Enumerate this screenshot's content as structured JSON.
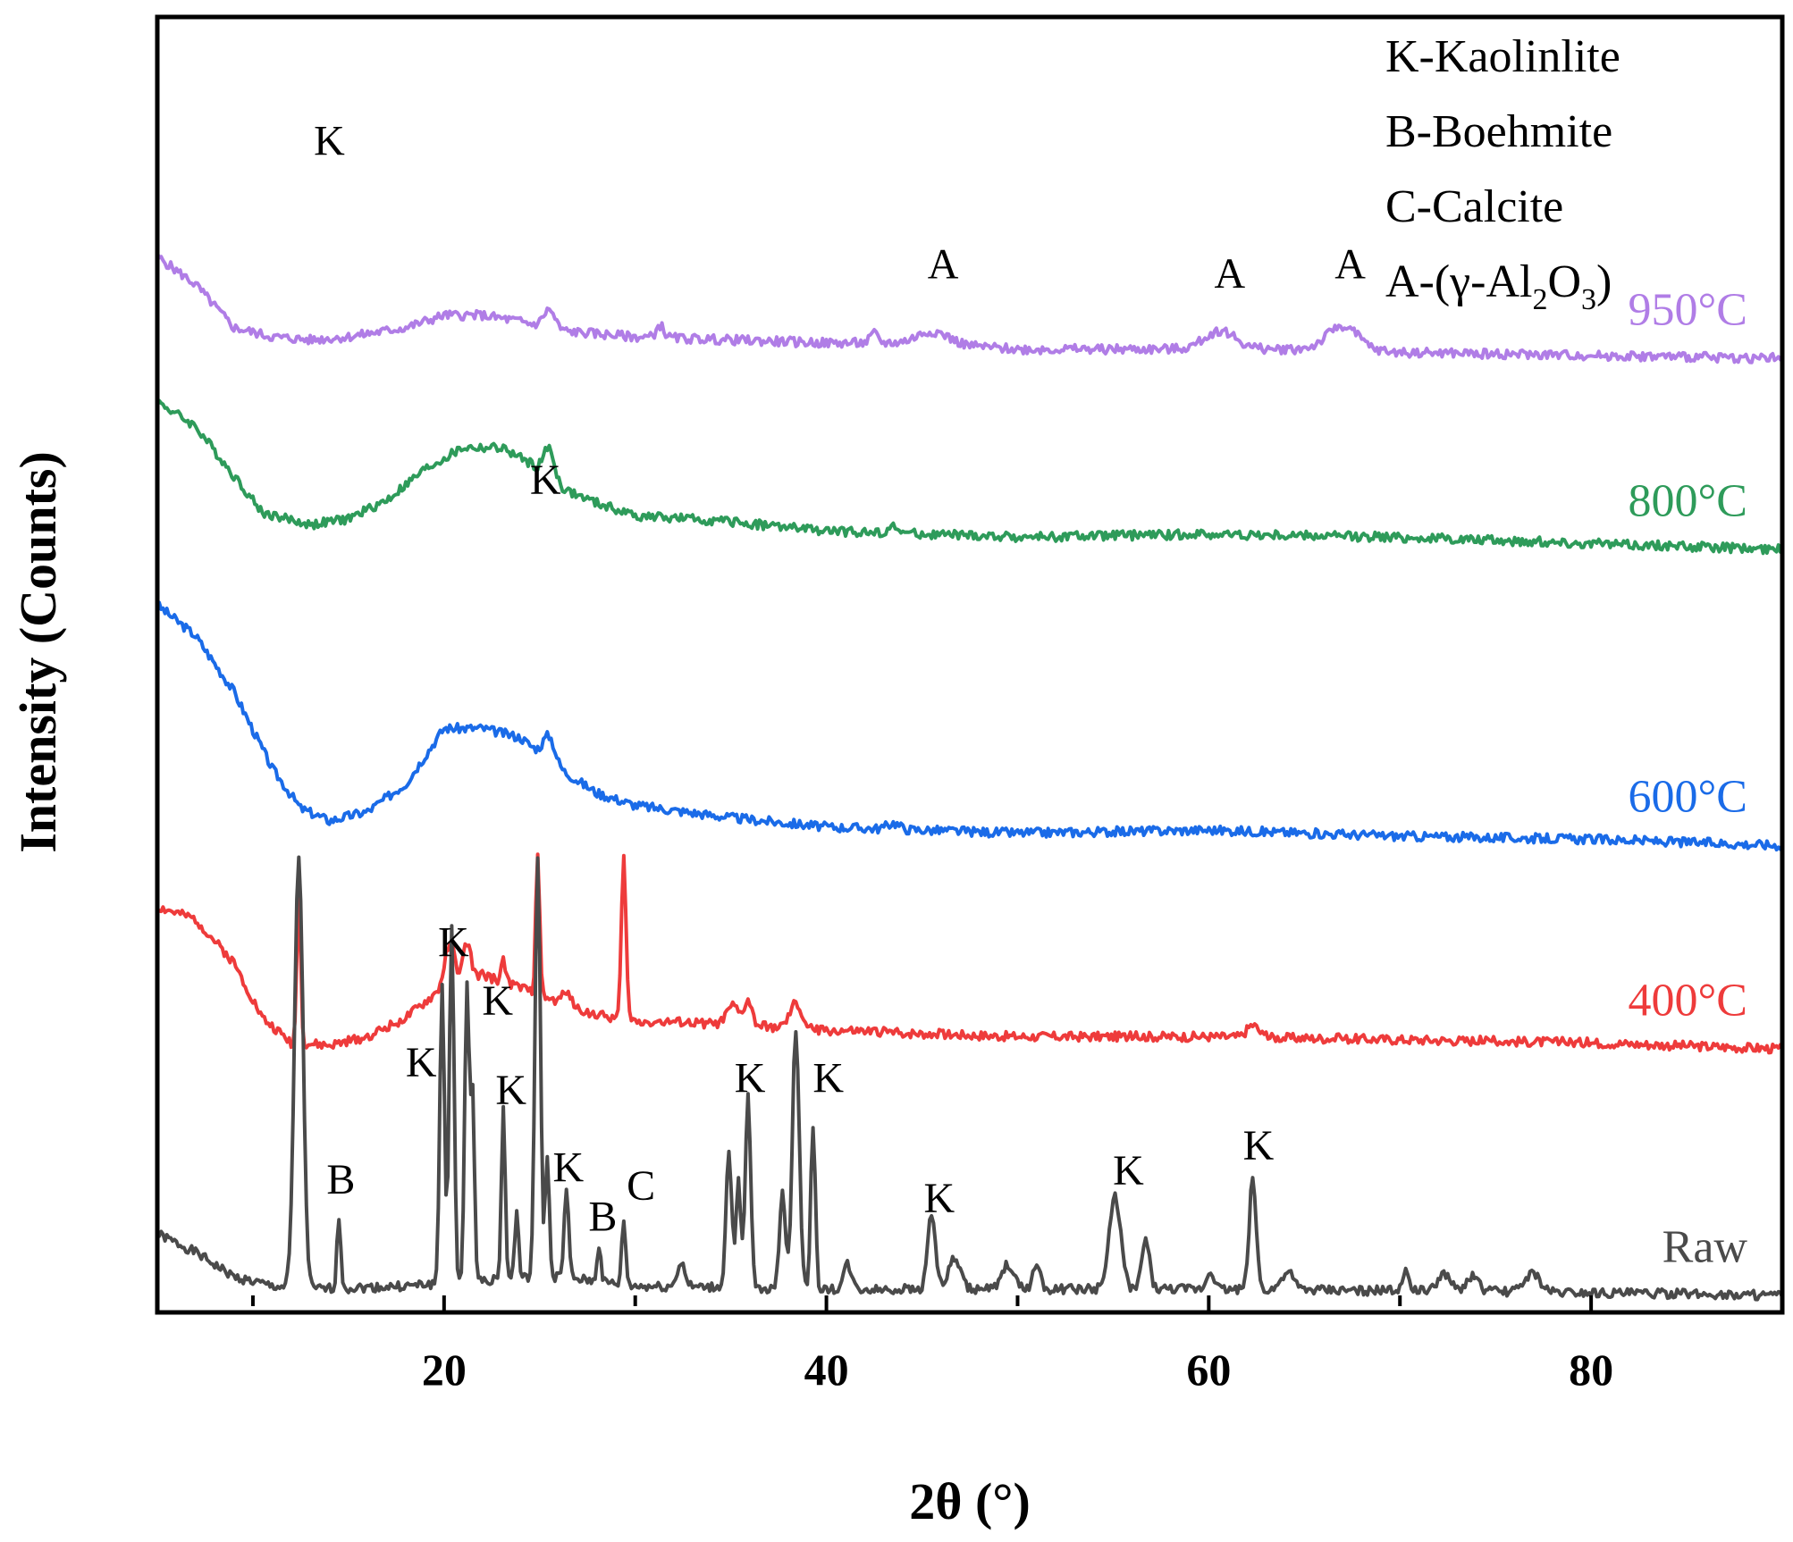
{
  "chart_data": {
    "type": "line",
    "title": "",
    "xlabel": "2θ (°)",
    "ylabel": "Intensity (Counts)",
    "xlim": [
      5,
      90
    ],
    "xticks": [
      20,
      40,
      60,
      80
    ],
    "yticks_shown": false,
    "legend_position": "top-right",
    "legend": [
      {
        "text": "K-Kaolinlite"
      },
      {
        "text": "B-Boehmite"
      },
      {
        "text": "C-Calcite"
      },
      {
        "prefix": "A-(γ-Al",
        "sub1": "2",
        "mid": "O",
        "sub2": "3",
        "suffix": ")"
      }
    ],
    "series": [
      {
        "name": "Raw",
        "label": "Raw",
        "color": "#4a4a4a",
        "offset": 0,
        "baseline": [
          [
            5,
            20
          ],
          [
            7,
            14
          ],
          [
            9,
            6
          ],
          [
            11,
            3
          ],
          [
            13,
            2
          ],
          [
            18,
            3
          ],
          [
            22,
            5
          ],
          [
            26,
            6
          ],
          [
            30,
            3
          ],
          [
            40,
            2
          ],
          [
            50,
            2
          ],
          [
            60,
            2
          ],
          [
            70,
            1.5
          ],
          [
            80,
            1
          ],
          [
            90,
            0
          ]
        ],
        "peaks": [
          [
            12.4,
            140,
            0.22
          ],
          [
            14.5,
            23,
            0.1
          ],
          [
            19.9,
            97,
            0.12
          ],
          [
            20.4,
            116,
            0.12
          ],
          [
            21.2,
            96,
            0.12
          ],
          [
            21.5,
            58,
            0.1
          ],
          [
            23.1,
            55,
            0.1
          ],
          [
            23.8,
            22,
            0.1
          ],
          [
            24.9,
            135,
            0.14
          ],
          [
            25.4,
            40,
            0.1
          ],
          [
            26.4,
            28,
            0.12
          ],
          [
            28.1,
            12,
            0.1
          ],
          [
            29.4,
            21,
            0.1
          ],
          [
            32.4,
            8,
            0.2
          ],
          [
            34.9,
            44,
            0.15
          ],
          [
            35.4,
            34,
            0.12
          ],
          [
            35.9,
            62,
            0.14
          ],
          [
            37.7,
            32,
            0.15
          ],
          [
            38.4,
            84,
            0.18
          ],
          [
            39.3,
            52,
            0.12
          ],
          [
            41.1,
            8,
            0.2
          ],
          [
            45.5,
            25,
            0.2
          ],
          [
            46.7,
            10,
            0.3
          ],
          [
            49.5,
            8,
            0.3
          ],
          [
            51,
            8,
            0.2
          ],
          [
            55.1,
            30,
            0.3
          ],
          [
            56.7,
            16,
            0.2
          ],
          [
            60.1,
            6,
            0.2
          ],
          [
            62.3,
            36,
            0.18
          ],
          [
            64.1,
            6,
            0.3
          ],
          [
            70.3,
            6,
            0.2
          ],
          [
            72.3,
            6,
            0.3
          ],
          [
            73.8,
            5,
            0.3
          ],
          [
            76.9,
            6,
            0.4
          ]
        ]
      },
      {
        "name": "400°C",
        "label": "400°C",
        "color": "#ee3b3b",
        "offset": 80,
        "baseline": [
          [
            5,
            46
          ],
          [
            7,
            42
          ],
          [
            9,
            28
          ],
          [
            10.5,
            10
          ],
          [
            12,
            2
          ],
          [
            14,
            1
          ],
          [
            16,
            4
          ],
          [
            18,
            10
          ],
          [
            20,
            20
          ],
          [
            22,
            24
          ],
          [
            24,
            20
          ],
          [
            26,
            15
          ],
          [
            28,
            11
          ],
          [
            30,
            9
          ],
          [
            35,
            8
          ],
          [
            40,
            6
          ],
          [
            45,
            5
          ],
          [
            50,
            4
          ],
          [
            60,
            4
          ],
          [
            70,
            3
          ],
          [
            80,
            2
          ],
          [
            90,
            0
          ]
        ],
        "peaks": [
          [
            12.4,
            48,
            0.1
          ],
          [
            20.3,
            14,
            0.25
          ],
          [
            21.2,
            12,
            0.2
          ],
          [
            23.1,
            8,
            0.1
          ],
          [
            24.9,
            46,
            0.1
          ],
          [
            26.4,
            5,
            0.2
          ],
          [
            29.4,
            52,
            0.12
          ],
          [
            35.1,
            6,
            0.3
          ],
          [
            35.9,
            8,
            0.2
          ],
          [
            38.4,
            8,
            0.3
          ],
          [
            62.3,
            4,
            0.3
          ]
        ]
      },
      {
        "name": "600°C",
        "label": "600°C",
        "color": "#1a6be8",
        "offset": 146,
        "baseline": [
          [
            5,
            78
          ],
          [
            7,
            68
          ],
          [
            9,
            50
          ],
          [
            11,
            25
          ],
          [
            12.5,
            12
          ],
          [
            14,
            8
          ],
          [
            16,
            11
          ],
          [
            18,
            20
          ],
          [
            20,
            38
          ],
          [
            22,
            38
          ],
          [
            24,
            35
          ],
          [
            26,
            25
          ],
          [
            28,
            17
          ],
          [
            30,
            13
          ],
          [
            35,
            9
          ],
          [
            40,
            6
          ],
          [
            45,
            5
          ],
          [
            50,
            4
          ],
          [
            60,
            5
          ],
          [
            70,
            3
          ],
          [
            80,
            2
          ],
          [
            90,
            0
          ]
        ],
        "peaks": [
          [
            25.5,
            8,
            0.3
          ],
          [
            43.5,
            2,
            0.3
          ]
        ]
      },
      {
        "name": "800°C",
        "label": "800°C",
        "color": "#2e9b5a",
        "offset": 242,
        "baseline": [
          [
            5,
            48
          ],
          [
            7,
            40
          ],
          [
            9,
            24
          ],
          [
            10.5,
            12
          ],
          [
            13,
            8
          ],
          [
            15,
            10
          ],
          [
            17,
            16
          ],
          [
            19,
            26
          ],
          [
            21,
            33
          ],
          [
            23,
            33
          ],
          [
            24.5,
            28
          ],
          [
            26,
            20
          ],
          [
            28,
            15
          ],
          [
            30,
            11
          ],
          [
            35,
            9
          ],
          [
            40,
            6
          ],
          [
            45,
            5
          ],
          [
            50,
            4
          ],
          [
            60,
            5
          ],
          [
            70,
            4
          ],
          [
            80,
            2
          ],
          [
            90,
            0
          ]
        ],
        "peaks": [
          [
            25.5,
            10,
            0.3
          ],
          [
            43.5,
            2,
            0.3
          ]
        ]
      },
      {
        "name": "950°C",
        "label": "950°C",
        "color": "#b07de6",
        "offset": 304,
        "baseline": [
          [
            5,
            33
          ],
          [
            7,
            24
          ],
          [
            9,
            10
          ],
          [
            11,
            7
          ],
          [
            13,
            6
          ],
          [
            15,
            7
          ],
          [
            18,
            10
          ],
          [
            20,
            14
          ],
          [
            22,
            14
          ],
          [
            24,
            12
          ],
          [
            26,
            9
          ],
          [
            30,
            7
          ],
          [
            35,
            6
          ],
          [
            40,
            5
          ],
          [
            45,
            5
          ],
          [
            50,
            3
          ],
          [
            55,
            3
          ],
          [
            60,
            3
          ],
          [
            65,
            3
          ],
          [
            70,
            2
          ],
          [
            80,
            1
          ],
          [
            90,
            0
          ]
        ],
        "peaks": [
          [
            25.5,
            6,
            0.3
          ],
          [
            31.3,
            4,
            0.2
          ],
          [
            42.5,
            3,
            0.2
          ],
          [
            45.6,
            4,
            0.8
          ],
          [
            60.6,
            6,
            0.8
          ],
          [
            67.0,
            8,
            0.8
          ]
        ]
      }
    ],
    "annotations": [
      {
        "text": "K",
        "x": 14.0,
        "y": 370
      },
      {
        "text": "K",
        "x": 25.3,
        "y": 260
      },
      {
        "text": "K",
        "x": 20.5,
        "y": 110
      },
      {
        "text": "K",
        "x": 22.8,
        "y": 91
      },
      {
        "text": "K",
        "x": 18.8,
        "y": 71
      },
      {
        "text": "K",
        "x": 23.5,
        "y": 62
      },
      {
        "text": "K",
        "x": 26.5,
        "y": 37
      },
      {
        "text": "B",
        "x": 14.6,
        "y": 33
      },
      {
        "text": "B",
        "x": 28.3,
        "y": 21
      },
      {
        "text": "C",
        "x": 30.3,
        "y": 31
      },
      {
        "text": "K",
        "x": 36.0,
        "y": 66
      },
      {
        "text": "K",
        "x": 40.1,
        "y": 66
      },
      {
        "text": "K",
        "x": 45.9,
        "y": 27
      },
      {
        "text": "K",
        "x": 55.8,
        "y": 36
      },
      {
        "text": "K",
        "x": 62.6,
        "y": 44
      },
      {
        "text": "A",
        "x": 46.1,
        "y": 330
      },
      {
        "text": "A",
        "x": 61.1,
        "y": 327
      },
      {
        "text": "A",
        "x": 67.4,
        "y": 330
      }
    ]
  }
}
